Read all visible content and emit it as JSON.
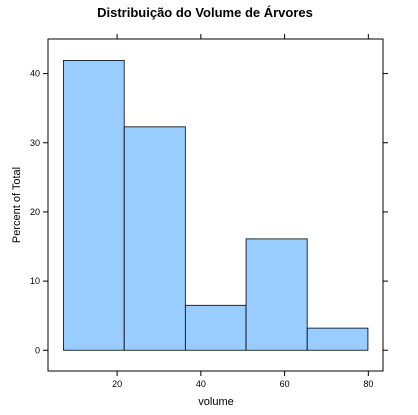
{
  "chart_data": {
    "type": "bar",
    "title": "Distribuição do Volume de Árvores",
    "xlabel": "volume",
    "ylabel": "Percent of Total",
    "bins": [
      {
        "x0": 7.2,
        "x1": 21.7,
        "value": 41.9
      },
      {
        "x0": 21.7,
        "x1": 36.3,
        "value": 32.3
      },
      {
        "x0": 36.3,
        "x1": 50.8,
        "value": 6.5
      },
      {
        "x0": 50.8,
        "x1": 65.4,
        "value": 16.1
      },
      {
        "x0": 65.4,
        "x1": 79.9,
        "value": 3.2
      }
    ],
    "xlim": [
      3.5,
      83.5
    ],
    "ylim": [
      -3,
      45
    ],
    "xticks": [
      20,
      40,
      60,
      80
    ],
    "yticks": [
      0,
      10,
      20,
      30,
      40
    ],
    "bar_color": "#99CCFF",
    "grid": false
  }
}
